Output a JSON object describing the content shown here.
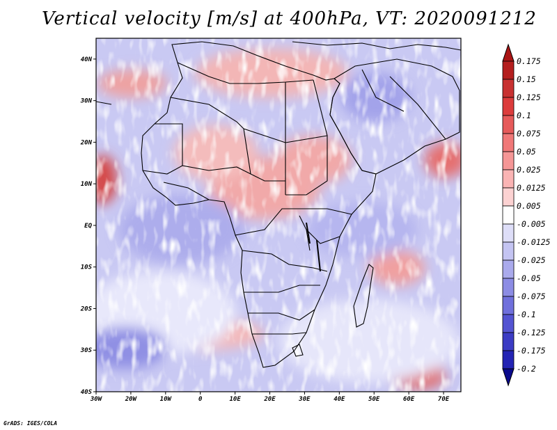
{
  "title": "Vertical velocity [m/s] at 400hPa, VT: 2020091212",
  "credit": "GrADS: IGES/COLA",
  "map": {
    "lon_range": [
      -30,
      75
    ],
    "lat_range": [
      -40,
      45
    ],
    "lat_ticks": [
      "40N",
      "30N",
      "20N",
      "10N",
      "EQ",
      "10S",
      "20S",
      "30S",
      "40S"
    ],
    "lon_ticks": [
      "30W",
      "20W",
      "10W",
      "0",
      "10E",
      "20E",
      "30E",
      "40E",
      "50E",
      "60E",
      "70E"
    ]
  },
  "colorbar": {
    "levels": [
      "0.175",
      "0.15",
      "0.125",
      "0.1",
      "0.075",
      "0.05",
      "0.025",
      "0.0125",
      "0.005",
      "-0.005",
      "-0.0125",
      "-0.025",
      "-0.05",
      "-0.075",
      "-0.1",
      "-0.125",
      "-0.175",
      "-0.2"
    ],
    "colors": [
      "#b41e1e",
      "#c83232",
      "#dc3c3c",
      "#e65a5a",
      "#f07878",
      "#f59696",
      "#fab4b4",
      "#fcd2d2",
      "#ffffff",
      "#dedef8",
      "#c4c4f2",
      "#aaaaec",
      "#8c8ce4",
      "#7070dc",
      "#5454d2",
      "#3c3cc4",
      "#2424b4",
      "#1414a0"
    ],
    "top_color": "#aa1414",
    "bottom_color": "#0a0a8c"
  }
}
